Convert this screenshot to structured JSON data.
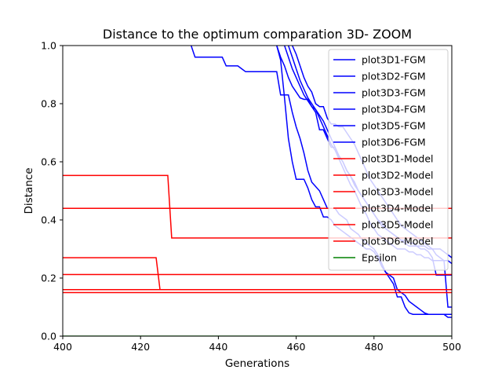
{
  "chart_data": {
    "type": "line",
    "title": "Distance to the optimum comparation 3D- ZOOM",
    "xlabel": "Generations",
    "ylabel": "Distance",
    "xlim": [
      400,
      500
    ],
    "ylim": [
      0,
      1.0
    ],
    "xticks": [
      "400",
      "420",
      "440",
      "460",
      "480",
      "500"
    ],
    "yticks": [
      "0.0",
      "0.2",
      "0.4",
      "0.6",
      "0.8",
      "1.0"
    ],
    "grid": false,
    "legend_position": "upper right",
    "series": [
      {
        "name": "plot3D1-FGM",
        "color": "#0000ff",
        "x": [
          433,
          434,
          441,
          442,
          445,
          446,
          447,
          455,
          456,
          458,
          459,
          460,
          461,
          462,
          463,
          464,
          466,
          467,
          468,
          470,
          471,
          473,
          474,
          476,
          477,
          479,
          480,
          481,
          482,
          483,
          485,
          486,
          488,
          489,
          491,
          492,
          493,
          494,
          495,
          496,
          498,
          499,
          500
        ],
        "y": [
          1.0,
          0.96,
          0.96,
          0.93,
          0.93,
          0.92,
          0.91,
          0.91,
          0.83,
          0.83,
          0.77,
          0.72,
          0.68,
          0.63,
          0.57,
          0.53,
          0.5,
          0.47,
          0.44,
          0.44,
          0.42,
          0.4,
          0.37,
          0.35,
          0.33,
          0.31,
          0.3,
          0.28,
          0.25,
          0.22,
          0.2,
          0.16,
          0.14,
          0.12,
          0.1,
          0.09,
          0.08,
          0.075,
          0.075,
          0.075,
          0.075,
          0.075,
          0.075
        ]
      },
      {
        "name": "plot3D2-FGM",
        "color": "#0000ff",
        "x": [
          455,
          456,
          457,
          458,
          459,
          460,
          461,
          462,
          463,
          464,
          465,
          466,
          467,
          468,
          469,
          470,
          471,
          472,
          473,
          474,
          475,
          476,
          477,
          478,
          479,
          480,
          481,
          482,
          483,
          484,
          485,
          486,
          487,
          488,
          489,
          490,
          491,
          492,
          493,
          494,
          495,
          496,
          497,
          498,
          499,
          500
        ],
        "y": [
          1.0,
          0.95,
          0.82,
          0.68,
          0.6,
          0.54,
          0.54,
          0.54,
          0.51,
          0.47,
          0.445,
          0.445,
          0.41,
          0.41,
          0.4,
          0.38,
          0.37,
          0.36,
          0.35,
          0.34,
          0.33,
          0.32,
          0.31,
          0.3,
          0.3,
          0.29,
          0.27,
          0.24,
          0.22,
          0.2,
          0.18,
          0.135,
          0.135,
          0.1,
          0.08,
          0.075,
          0.075,
          0.075,
          0.075,
          0.075,
          0.075,
          0.075,
          0.075,
          0.075,
          0.065,
          0.065
        ]
      },
      {
        "name": "plot3D3-FGM",
        "color": "#0000ff",
        "x": [
          459,
          460,
          461,
          462,
          463,
          464,
          465,
          466,
          467,
          468,
          469,
          470,
          471,
          472,
          473,
          474,
          475,
          476,
          477,
          478,
          479,
          480,
          481,
          482,
          483,
          484,
          485,
          486,
          487,
          488,
          489,
          490,
          491,
          492,
          493,
          494,
          495,
          496,
          497,
          498,
          499,
          500
        ],
        "y": [
          1.0,
          0.97,
          0.93,
          0.89,
          0.86,
          0.84,
          0.8,
          0.79,
          0.79,
          0.75,
          0.73,
          0.73,
          0.72,
          0.72,
          0.7,
          0.68,
          0.66,
          0.63,
          0.6,
          0.57,
          0.54,
          0.52,
          0.5,
          0.48,
          0.46,
          0.44,
          0.42,
          0.4,
          0.38,
          0.37,
          0.36,
          0.35,
          0.34,
          0.33,
          0.32,
          0.31,
          0.3,
          0.28,
          0.27,
          0.26,
          0.26,
          0.25
        ]
      },
      {
        "name": "plot3D4-FGM",
        "color": "#0000ff",
        "x": [
          455,
          456,
          457,
          458,
          459,
          460,
          461,
          462,
          463,
          464,
          465,
          466,
          467,
          468,
          469,
          470,
          471,
          472,
          473,
          474,
          475,
          476,
          477,
          478,
          479,
          480,
          481,
          482,
          483,
          484,
          485,
          486,
          487,
          488,
          489,
          490,
          491,
          492,
          493,
          494,
          495,
          496,
          497,
          498,
          499,
          500
        ],
        "y": [
          1.0,
          0.96,
          0.93,
          0.89,
          0.86,
          0.84,
          0.82,
          0.815,
          0.815,
          0.79,
          0.77,
          0.71,
          0.71,
          0.68,
          0.65,
          0.65,
          0.62,
          0.6,
          0.57,
          0.55,
          0.52,
          0.5,
          0.48,
          0.46,
          0.44,
          0.42,
          0.4,
          0.39,
          0.37,
          0.36,
          0.35,
          0.34,
          0.33,
          0.32,
          0.31,
          0.31,
          0.31,
          0.3,
          0.3,
          0.29,
          0.27,
          0.21,
          0.21,
          0.21,
          0.21,
          0.21
        ]
      },
      {
        "name": "plot3D5-FGM",
        "color": "#0000ff",
        "x": [
          457,
          458,
          459,
          460,
          461,
          462,
          463,
          464,
          465,
          466,
          467,
          468,
          469,
          470,
          471,
          472,
          473,
          474,
          475,
          476,
          477,
          478,
          479,
          480,
          481,
          482,
          483,
          484,
          485,
          486,
          487,
          488,
          489,
          490,
          491,
          492,
          493,
          494,
          495,
          496,
          497,
          498,
          499,
          500
        ],
        "y": [
          1.0,
          0.96,
          0.92,
          0.89,
          0.86,
          0.83,
          0.81,
          0.79,
          0.78,
          0.76,
          0.74,
          0.71,
          0.68,
          0.65,
          0.62,
          0.6,
          0.57,
          0.55,
          0.53,
          0.5,
          0.48,
          0.46,
          0.44,
          0.42,
          0.4,
          0.38,
          0.37,
          0.36,
          0.35,
          0.34,
          0.33,
          0.33,
          0.32,
          0.32,
          0.31,
          0.31,
          0.31,
          0.3,
          0.3,
          0.3,
          0.3,
          0.29,
          0.28,
          0.27
        ]
      },
      {
        "name": "plot3D6-FGM",
        "color": "#0000ff",
        "x": [
          458,
          459,
          460,
          461,
          462,
          463,
          464,
          465,
          466,
          467,
          468,
          469,
          470,
          471,
          472,
          473,
          474,
          475,
          476,
          477,
          478,
          479,
          480,
          481,
          482,
          483,
          484,
          485,
          486,
          487,
          488,
          489,
          490,
          491,
          492,
          493,
          494,
          495,
          496,
          497,
          498,
          499,
          500
        ],
        "y": [
          1.0,
          0.96,
          0.92,
          0.88,
          0.85,
          0.82,
          0.8,
          0.78,
          0.75,
          0.72,
          0.69,
          0.66,
          0.64,
          0.61,
          0.58,
          0.55,
          0.52,
          0.5,
          0.47,
          0.44,
          0.42,
          0.39,
          0.37,
          0.35,
          0.34,
          0.33,
          0.32,
          0.31,
          0.3,
          0.3,
          0.3,
          0.29,
          0.29,
          0.28,
          0.28,
          0.27,
          0.27,
          0.26,
          0.26,
          0.26,
          0.26,
          0.1,
          0.1
        ]
      },
      {
        "name": "plot3D1-Model",
        "color": "#ff0000",
        "x": [
          400,
          427,
          428,
          500
        ],
        "y": [
          0.553,
          0.553,
          0.338,
          0.338
        ]
      },
      {
        "name": "plot3D2-Model",
        "color": "#ff0000",
        "x": [
          400,
          500
        ],
        "y": [
          0.44,
          0.44
        ]
      },
      {
        "name": "plot3D3-Model",
        "color": "#ff0000",
        "x": [
          400,
          424,
          425,
          500
        ],
        "y": [
          0.27,
          0.27,
          0.16,
          0.16
        ]
      },
      {
        "name": "plot3D4-Model",
        "color": "#ff0000",
        "x": [
          400,
          500
        ],
        "y": [
          0.212,
          0.212
        ]
      },
      {
        "name": "plot3D5-Model",
        "color": "#ff0000",
        "x": [
          400,
          500
        ],
        "y": [
          0.16,
          0.16
        ]
      },
      {
        "name": "plot3D6-Model",
        "color": "#ff0000",
        "x": [
          400,
          500
        ],
        "y": [
          0.15,
          0.15
        ]
      },
      {
        "name": "Epsilon",
        "color": "#008000",
        "x": [
          400,
          500
        ],
        "y": [
          0.0,
          0.0
        ]
      }
    ]
  }
}
